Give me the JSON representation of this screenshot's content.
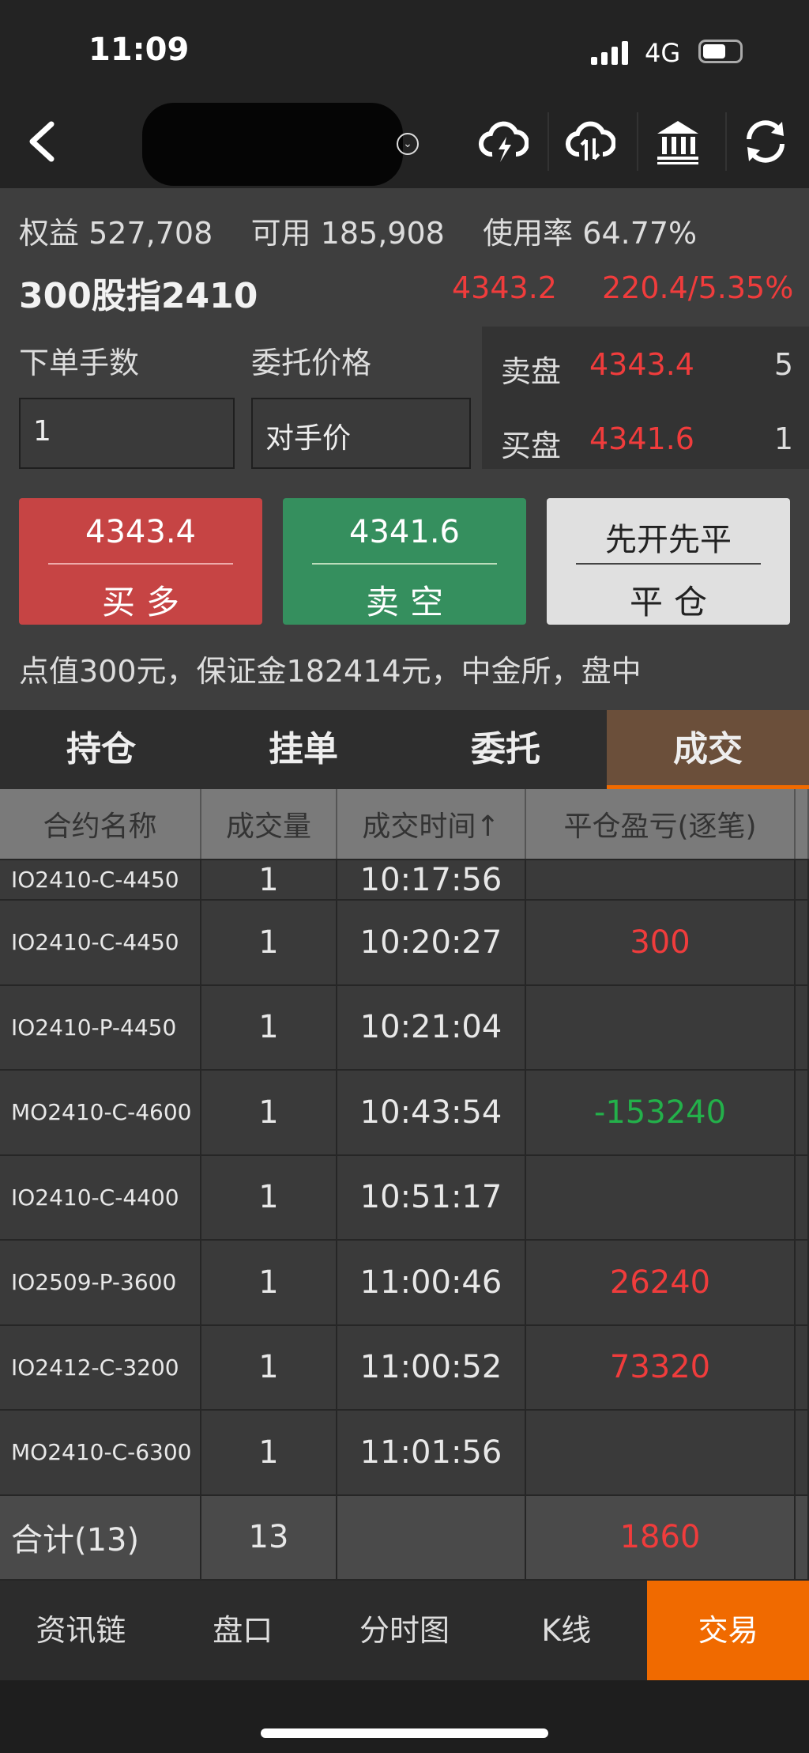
{
  "status": {
    "time": "11:09",
    "network": "4G"
  },
  "nav": {
    "icons": [
      "back-icon",
      "dropdown-icon",
      "cloud-lightning-icon",
      "cloud-transfer-icon",
      "bank-icon",
      "refresh-icon"
    ]
  },
  "account": {
    "equity_label": "权益",
    "equity": "527,708",
    "avail_label": "可用",
    "avail": "185,908",
    "usage_label": "使用率",
    "usage": "64.77%"
  },
  "contract": {
    "name": "300股指2410",
    "price": "4343.2",
    "change": "220.4/5.35%"
  },
  "order": {
    "qty_label": "下单手数",
    "qty": "1",
    "price_label": "委托价格",
    "price_type": "对手价"
  },
  "depth": {
    "ask_label": "卖盘",
    "ask": "4343.4",
    "ask_vol": "5",
    "bid_label": "买盘",
    "bid": "4341.6",
    "bid_vol": "1"
  },
  "buttons": {
    "buy_price": "4343.4",
    "buy_label": "买多",
    "sell_price": "4341.6",
    "sell_label": "卖空",
    "close_mode": "先开先平",
    "close_label": "平仓"
  },
  "note": "点值300元，保证金182414元，中金所，盘中",
  "tabs": [
    "持仓",
    "挂单",
    "委托",
    "成交"
  ],
  "table": {
    "headers": [
      "合约名称",
      "成交量",
      "成交时间↑",
      "平仓盈亏(逐笔)"
    ],
    "partial_row": {
      "name": "IO2410-C-4450",
      "qty": "1",
      "time": "10:17:56",
      "pnl": ""
    },
    "rows": [
      {
        "name": "IO2410-C-4450",
        "qty": "1",
        "time": "10:20:27",
        "pnl": "300"
      },
      {
        "name": "IO2410-P-4450",
        "qty": "1",
        "time": "10:21:04",
        "pnl": ""
      },
      {
        "name": "MO2410-C-4600",
        "qty": "1",
        "time": "10:43:54",
        "pnl": "-153240"
      },
      {
        "name": "IO2410-C-4400",
        "qty": "1",
        "time": "10:51:17",
        "pnl": ""
      },
      {
        "name": "IO2509-P-3600",
        "qty": "1",
        "time": "11:00:46",
        "pnl": "26240"
      },
      {
        "name": "IO2412-C-3200",
        "qty": "1",
        "time": "11:00:52",
        "pnl": "73320"
      },
      {
        "name": "MO2410-C-6300",
        "qty": "1",
        "time": "11:01:56",
        "pnl": ""
      }
    ],
    "total": {
      "label": "合计(13)",
      "qty": "13",
      "pnl": "1860"
    }
  },
  "bottom_nav": [
    "资讯链",
    "盘口",
    "分时图",
    "K线",
    "交易"
  ],
  "colors": {
    "up": "#f03c3c",
    "down": "#23b04a",
    "accent": "#f06a00",
    "buy": "#c64444",
    "sell": "#358f5e"
  }
}
